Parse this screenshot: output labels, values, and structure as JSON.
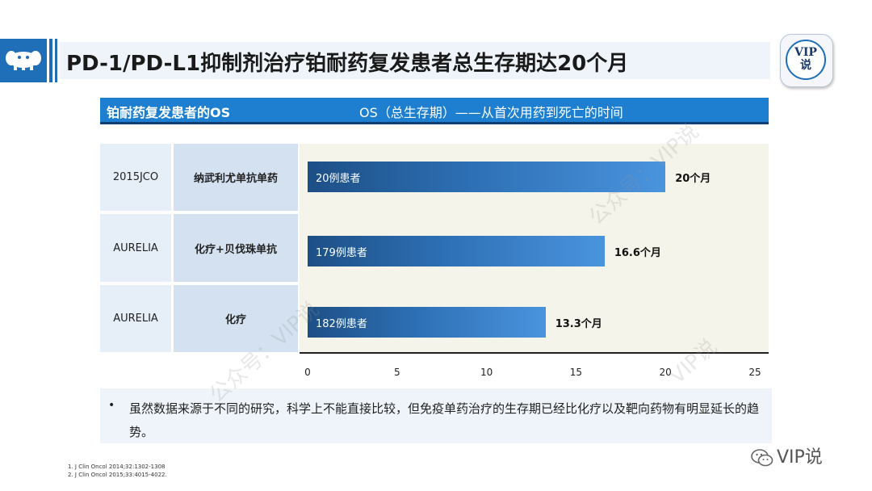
{
  "header": {
    "title": "PD-1/PD-L1抑制剂治疗铂耐药复发患者总生存期达20个月",
    "badge_line1": "VIP",
    "badge_line2": "说"
  },
  "section": {
    "title": "铂耐药复发患者的OS",
    "subtitle": "OS（总生存期）——从首次用药到死亡的时间"
  },
  "table_rows": [
    {
      "study": "2015JCO",
      "regimen": "纳武利尤单抗单药",
      "bar_label": "20例患者",
      "value_label": "20个月"
    },
    {
      "study": "AURELIA",
      "regimen": "化疗+贝伐珠单抗",
      "bar_label": "179例患者",
      "value_label": "16.6个月"
    },
    {
      "study": "AURELIA",
      "regimen": "化疗",
      "bar_label": "182例患者",
      "value_label": "13.3个月"
    }
  ],
  "chart_data": {
    "type": "bar",
    "orientation": "horizontal",
    "categories": [
      "纳武利尤单抗单药",
      "化疗+贝伐珠单抗",
      "化疗"
    ],
    "values": [
      20,
      16.6,
      13.3
    ],
    "xlim": [
      0,
      25
    ],
    "xticks": [
      "0",
      "5",
      "10",
      "15",
      "20",
      "25"
    ],
    "bar_color": "#2d6fb4"
  },
  "note": {
    "bullet": "•",
    "text": "虽然数据来源于不同的研究，科学上不能直接比较，但免疫单药治疗的生存期已经比化疗以及靶向药物有明显延长的趋势。"
  },
  "references": [
    "1. J Clin Oncol 2014;32:1302-1308",
    "2. J Clin Oncol 2015;33:4015-4022."
  ],
  "watermarks": {
    "account": "VIP说",
    "diagonal_1": "公众号：VIP说",
    "diagonal_2": "公众号：VIP说",
    "diagonal_3": "VIP说"
  },
  "colors": {
    "accent": "#1e6fb8",
    "section_bar": "#1e7fd0",
    "chart_bg": "#f5f4ea"
  }
}
